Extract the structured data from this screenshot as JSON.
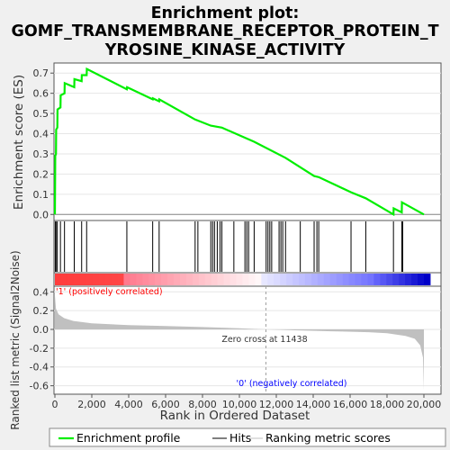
{
  "title_lines": [
    "Enrichment plot:",
    "GOMF_TRANSMEMBRANE_RECEPTOR_PROTEIN_T",
    "YROSINE_KINASE_ACTIVITY"
  ],
  "colors": {
    "es_line": "#00ee00",
    "hits": "#000000",
    "metric_fill": "#c0c0c0",
    "positive_label": "#ff0000",
    "negative_label": "#0000ff",
    "zero_line": "#a0a0a0"
  },
  "chart_data": {
    "type": "line",
    "x_max": 20000,
    "es_ylabel": "Enrichment score (ES)",
    "es_yticks": [
      "0.0",
      "0.1",
      "0.2",
      "0.3",
      "0.4",
      "0.5",
      "0.6",
      "0.7"
    ],
    "es_ylim": [
      -0.03,
      0.75
    ],
    "rank_ylabel": "Ranked list metric (Signal2Noise)",
    "rank_yticks": [
      "0.4",
      "0.2",
      "0.0",
      "-0.2",
      "-0.4",
      "-0.6"
    ],
    "rank_ylim": [
      -0.69,
      0.46
    ],
    "xlabel": "Rank in Ordered Dataset",
    "xticks": [
      "0",
      "2,000",
      "4,000",
      "6,000",
      "8,000",
      "10,000",
      "12,000",
      "14,000",
      "16,000",
      "18,000",
      "20,000"
    ],
    "positive_label": "'1' (positively correlated)",
    "negative_label": "'0' (negatively correlated)",
    "zero_cross_label": "Zero cross at 11438",
    "zero_cross": 11438,
    "hits": [
      20,
      60,
      130,
      300,
      520,
      1050,
      1450,
      1720,
      3900,
      5300,
      5650,
      7600,
      7750,
      8450,
      8550,
      8650,
      8800,
      8950,
      9050,
      9700,
      10300,
      10400,
      10500,
      10800,
      11450,
      11550,
      11650,
      11750,
      12150,
      12250,
      12350,
      12500,
      13300,
      14050,
      14200,
      14300,
      16050,
      16850,
      18350,
      18800,
      18850
    ],
    "es_curve": [
      [
        0,
        0
      ],
      [
        20,
        0.29
      ],
      [
        60,
        0.3
      ],
      [
        70,
        0.42
      ],
      [
        130,
        0.43
      ],
      [
        140,
        0.52
      ],
      [
        300,
        0.53
      ],
      [
        310,
        0.59
      ],
      [
        520,
        0.6
      ],
      [
        530,
        0.65
      ],
      [
        1050,
        0.63
      ],
      [
        1060,
        0.67
      ],
      [
        1450,
        0.66
      ],
      [
        1460,
        0.69
      ],
      [
        1720,
        0.69
      ],
      [
        1730,
        0.72
      ],
      [
        3900,
        0.62
      ],
      [
        3910,
        0.63
      ],
      [
        5300,
        0.57
      ],
      [
        5310,
        0.575
      ],
      [
        5650,
        0.56
      ],
      [
        5660,
        0.57
      ],
      [
        7600,
        0.47
      ],
      [
        8450,
        0.44
      ],
      [
        9050,
        0.43
      ],
      [
        10300,
        0.38
      ],
      [
        10800,
        0.36
      ],
      [
        12500,
        0.28
      ],
      [
        14050,
        0.19
      ],
      [
        14300,
        0.185
      ],
      [
        16050,
        0.11
      ],
      [
        16850,
        0.08
      ],
      [
        18350,
        0.0
      ],
      [
        18360,
        0.03
      ],
      [
        18800,
        0.01
      ],
      [
        18810,
        0.06
      ],
      [
        20000,
        0.0
      ]
    ],
    "metric_curve": [
      [
        0,
        0.36
      ],
      [
        60,
        0.22
      ],
      [
        200,
        0.16
      ],
      [
        500,
        0.12
      ],
      [
        1000,
        0.09
      ],
      [
        2000,
        0.065
      ],
      [
        4000,
        0.045
      ],
      [
        6000,
        0.035
      ],
      [
        8000,
        0.025
      ],
      [
        10000,
        0.012
      ],
      [
        11438,
        0
      ],
      [
        13000,
        -0.01
      ],
      [
        15000,
        -0.02
      ],
      [
        17000,
        -0.03
      ],
      [
        18000,
        -0.04
      ],
      [
        19000,
        -0.07
      ],
      [
        19500,
        -0.1
      ],
      [
        19800,
        -0.17
      ],
      [
        19950,
        -0.3
      ],
      [
        20000,
        -0.65
      ]
    ]
  },
  "legend": {
    "es_label": "Enrichment profile",
    "hits_label": "Hits",
    "metric_label": "Ranking metric scores"
  }
}
